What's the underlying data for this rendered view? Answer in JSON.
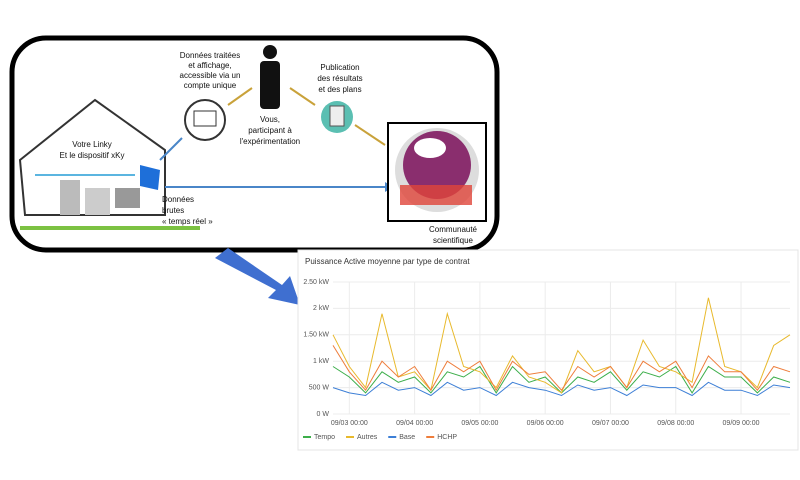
{
  "diagram": {
    "house": [
      "Votre Linky",
      "Et le dispositif xKy"
    ],
    "display": [
      "Données traitées",
      "et affichage,",
      "accessible via un",
      "compte unique"
    ],
    "person": [
      "Vous,",
      "participant à",
      "l'expérimentation"
    ],
    "publication": [
      "Publication",
      "des résultats",
      "et des plans"
    ],
    "raw": [
      "Données",
      "brutes",
      "« temps réel »"
    ],
    "community": [
      "Communauté",
      "scientifique"
    ]
  },
  "chart_data": {
    "type": "line",
    "title": "Puissance Active moyenne par type de contrat",
    "x": [
      "09/02 18:00",
      "09/03 00:00",
      "09/03 06:00",
      "09/03 12:00",
      "09/03 18:00",
      "09/04 00:00",
      "09/04 06:00",
      "09/04 12:00",
      "09/04 18:00",
      "09/05 00:00",
      "09/05 06:00",
      "09/05 12:00",
      "09/05 18:00",
      "09/06 00:00",
      "09/06 06:00",
      "09/06 12:00",
      "09/06 18:00",
      "09/07 00:00",
      "09/07 06:00",
      "09/07 12:00",
      "09/07 18:00",
      "09/08 00:00",
      "09/08 06:00",
      "09/08 12:00",
      "09/08 18:00",
      "09/09 00:00",
      "09/09 06:00",
      "09/09 12:00",
      "09/09 18:00"
    ],
    "xticks": [
      "09/03 00:00",
      "09/04 00:00",
      "09/05 00:00",
      "09/06 00:00",
      "09/07 00:00",
      "09/08 00:00",
      "09/09 00:00"
    ],
    "ylim": [
      0,
      2500
    ],
    "yticks": [
      {
        "value": 0,
        "label": "0 W"
      },
      {
        "value": 500,
        "label": "500 W"
      },
      {
        "value": 1000,
        "label": "1 kW"
      },
      {
        "value": 1500,
        "label": "1.50 kW"
      },
      {
        "value": 2000,
        "label": "2 kW"
      },
      {
        "value": 2500,
        "label": "2.50 kW"
      }
    ],
    "grid": true,
    "legend": "bottom-left",
    "series": [
      {
        "name": "Tempo",
        "color": "#3cae4a",
        "values": [
          900,
          700,
          400,
          800,
          600,
          700,
          400,
          800,
          700,
          900,
          400,
          900,
          600,
          700,
          400,
          700,
          600,
          800,
          450,
          800,
          700,
          900,
          400,
          900,
          700,
          700,
          400,
          700,
          600
        ]
      },
      {
        "name": "Autres",
        "color": "#e8b92c",
        "values": [
          1500,
          900,
          500,
          1900,
          700,
          800,
          450,
          1900,
          900,
          800,
          500,
          1100,
          700,
          600,
          400,
          1200,
          800,
          900,
          500,
          1400,
          900,
          800,
          600,
          2200,
          900,
          800,
          500,
          1300,
          1500
        ]
      },
      {
        "name": "Base",
        "color": "#3d7fd6",
        "values": [
          500,
          400,
          350,
          600,
          450,
          500,
          350,
          600,
          450,
          500,
          350,
          600,
          500,
          450,
          350,
          550,
          450,
          500,
          350,
          550,
          500,
          500,
          350,
          600,
          450,
          450,
          350,
          550,
          500
        ]
      },
      {
        "name": "HCHP",
        "color": "#ee7d3b",
        "values": [
          1300,
          800,
          450,
          1000,
          700,
          900,
          450,
          1000,
          800,
          1000,
          450,
          1000,
          750,
          800,
          450,
          900,
          700,
          900,
          500,
          1000,
          800,
          1000,
          500,
          1100,
          800,
          800,
          450,
          900,
          800
        ]
      }
    ]
  }
}
